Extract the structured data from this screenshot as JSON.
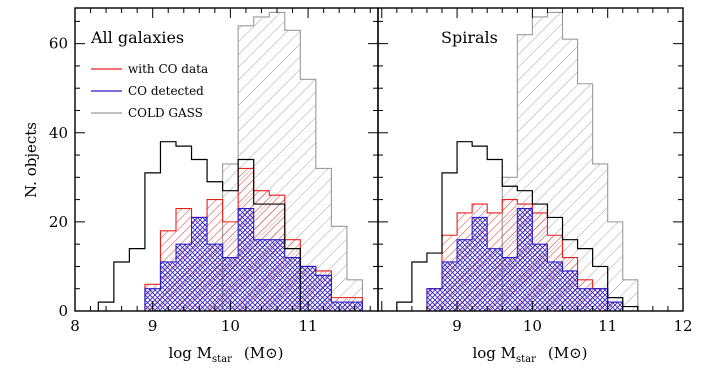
{
  "chart_data": [
    {
      "type": "histogram",
      "panel": "left",
      "title": "All galaxies",
      "xlabel": "log M",
      "xlabel_sub": "star",
      "xlabel_unit": "(M⊙)",
      "ylabel": "N. objects",
      "xlim": [
        8,
        11.9
      ],
      "ylim": [
        0,
        68
      ],
      "xticks": [
        "8",
        "9",
        "10",
        "11"
      ],
      "yticks": [
        "0",
        "20",
        "40",
        "60"
      ],
      "bin_edges": [
        8.3,
        8.5,
        8.7,
        8.9,
        9.1,
        9.3,
        9.5,
        9.7,
        9.9,
        10.1,
        10.3,
        10.5,
        10.7,
        10.9,
        11.1,
        11.3,
        11.5,
        11.7
      ],
      "series": [
        {
          "name": "black",
          "style": "outline",
          "color": "#000000",
          "values": [
            2,
            11,
            14,
            31,
            38,
            37,
            34,
            29,
            27,
            34,
            24,
            24,
            14,
            null,
            null,
            null,
            null
          ]
        },
        {
          "name": "COLD GASS",
          "style": "hatch-grey",
          "color": "#9a9a9a",
          "values": [
            null,
            null,
            null,
            null,
            null,
            null,
            null,
            null,
            33,
            64,
            66,
            67,
            63,
            52,
            32,
            19,
            7
          ]
        },
        {
          "name": "with CO data",
          "style": "hatch-red",
          "color": "#e8201c",
          "values": [
            null,
            null,
            null,
            6,
            18,
            23,
            21,
            25,
            20,
            32,
            27,
            26,
            16,
            10,
            9,
            3,
            3
          ]
        },
        {
          "name": "CO detected",
          "style": "crosshatch-blue",
          "color": "#2a1ec8",
          "values": [
            null,
            null,
            null,
            5,
            11,
            15,
            21,
            15,
            12,
            23,
            16,
            16,
            12,
            10,
            8,
            2,
            2
          ]
        }
      ],
      "legend": [
        "with CO data",
        "CO detected",
        "COLD GASS"
      ]
    },
    {
      "type": "histogram",
      "panel": "right",
      "title": "Spirals",
      "xlabel": "log M",
      "xlabel_sub": "star",
      "xlabel_unit": "(M⊙)",
      "xlim": [
        7.95,
        12
      ],
      "ylim": [
        0,
        68
      ],
      "xticks": [
        "9",
        "10",
        "11",
        "12"
      ],
      "bin_edges": [
        8.2,
        8.4,
        8.6,
        8.8,
        9.0,
        9.2,
        9.4,
        9.6,
        9.8,
        10.0,
        10.2,
        10.4,
        10.6,
        10.8,
        11.0,
        11.2,
        11.4
      ],
      "series": [
        {
          "name": "black",
          "style": "outline",
          "color": "#000000",
          "values": [
            2,
            11,
            13,
            31,
            38,
            37,
            34,
            28,
            27,
            24,
            21,
            16,
            14,
            10,
            3,
            1
          ]
        },
        {
          "name": "COLD GASS",
          "style": "hatch-grey",
          "color": "#9a9a9a",
          "values": [
            null,
            null,
            null,
            null,
            null,
            null,
            null,
            30,
            62,
            66,
            67,
            61,
            51,
            33,
            20,
            7
          ]
        },
        {
          "name": "with CO data",
          "style": "hatch-red",
          "color": "#e8201c",
          "values": [
            null,
            null,
            5,
            17,
            22,
            24,
            22,
            25,
            24,
            22,
            17,
            12,
            7,
            5,
            2,
            null
          ]
        },
        {
          "name": "CO detected",
          "style": "crosshatch-blue",
          "color": "#2a1ec8",
          "values": [
            null,
            null,
            5,
            11,
            16,
            21,
            14,
            12,
            23,
            15,
            11,
            9,
            5,
            5,
            2,
            null
          ]
        }
      ]
    }
  ]
}
